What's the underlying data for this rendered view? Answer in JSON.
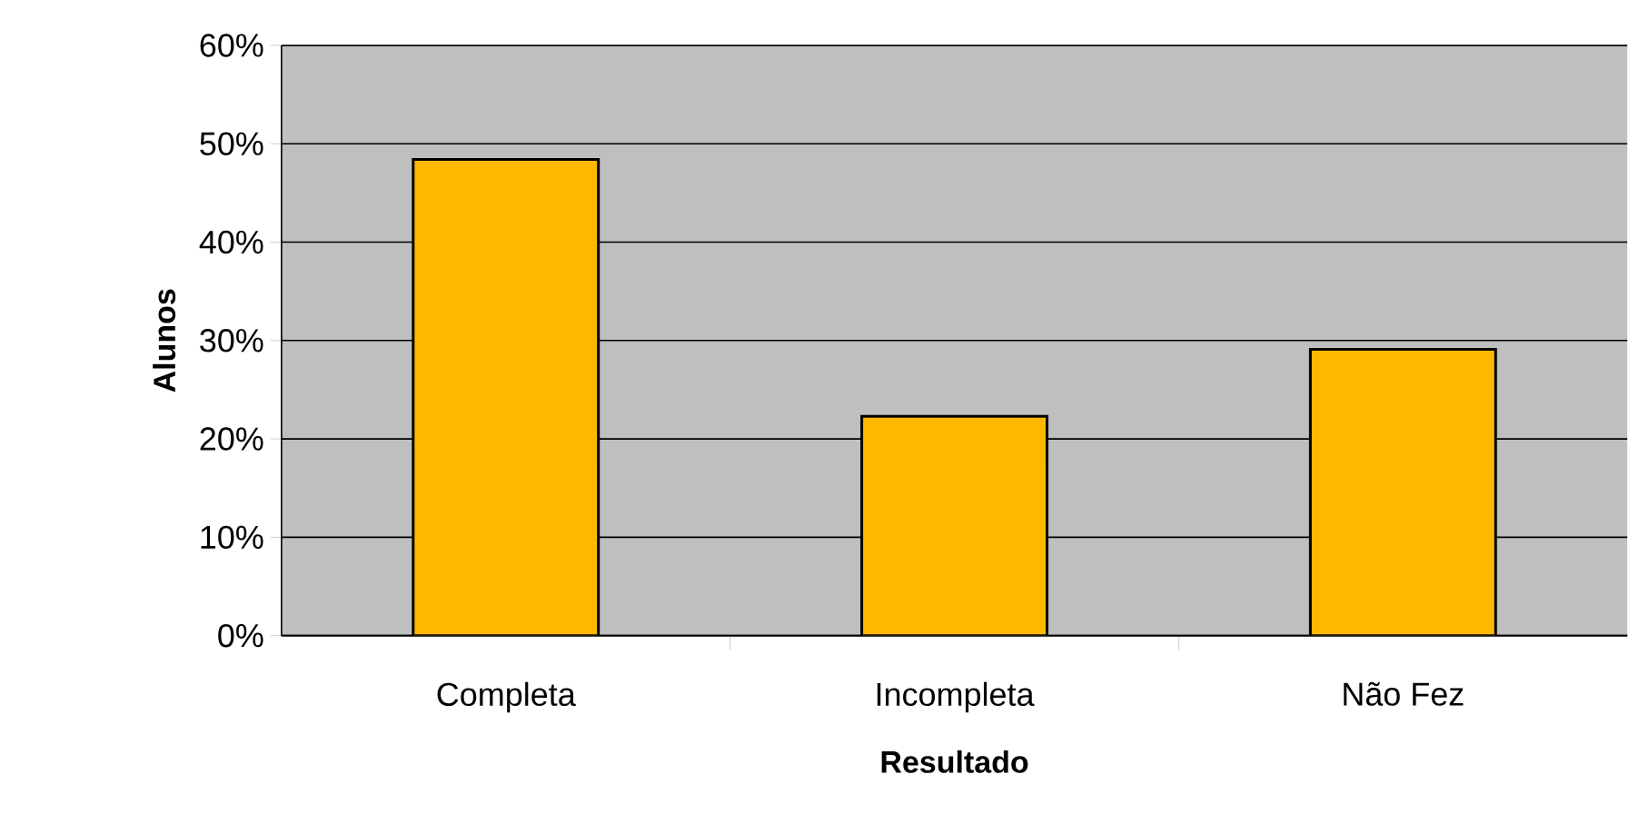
{
  "chart_data": {
    "type": "bar",
    "xlabel": "Resultado",
    "ylabel": "Alunos",
    "categories": [
      "Completa",
      "Incompleta",
      "Não Fez"
    ],
    "values": [
      48.4,
      22.3,
      29.1
    ],
    "color": "#ffb800",
    "ylim": [
      0,
      60
    ],
    "yticks": [
      {
        "value": 0,
        "label": "0%"
      },
      {
        "value": 10,
        "label": "10%"
      },
      {
        "value": 20,
        "label": "20%"
      },
      {
        "value": 30,
        "label": "30%"
      },
      {
        "value": 40,
        "label": "40%"
      },
      {
        "value": 50,
        "label": "50%"
      },
      {
        "value": 60,
        "label": "60%"
      }
    ],
    "grid": "y"
  }
}
